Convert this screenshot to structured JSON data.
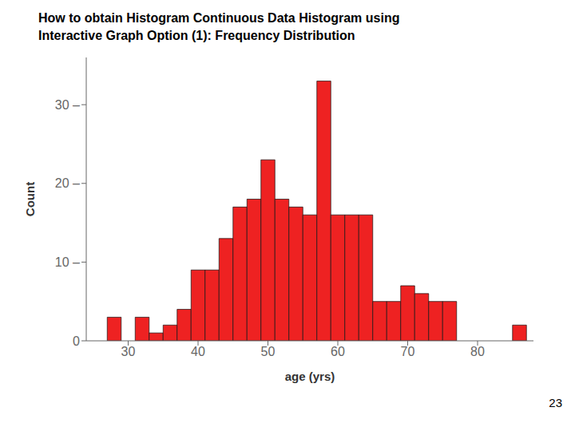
{
  "chart_data": {
    "type": "histogram",
    "title": "How to obtain Histogram Continuous Data Histogram using\nInteractive Graph Option (1): Frequency Distribution",
    "x_label": "age (yrs)",
    "y_label": "Count",
    "bins": [
      25,
      27,
      29,
      31,
      33,
      35,
      37,
      39,
      41,
      43,
      45,
      47,
      49,
      51,
      53,
      55,
      57,
      59,
      61,
      63,
      65,
      67,
      69,
      71,
      73,
      75,
      77,
      79,
      81,
      83,
      85,
      87
    ],
    "counts": [
      0,
      3,
      0,
      3,
      1,
      2,
      4,
      9,
      9,
      13,
      17,
      18,
      23,
      18,
      17,
      16,
      33,
      16,
      16,
      16,
      5,
      5,
      7,
      6,
      5,
      5,
      0,
      0,
      0,
      0,
      2
    ],
    "color": "#EE2222",
    "xlim": [
      24,
      88
    ],
    "xticks": [
      30,
      40,
      50,
      60,
      70,
      80
    ],
    "ylim": [
      0,
      36
    ],
    "yticks": [
      0,
      {
        "value": 10,
        "label": "10 –"
      },
      {
        "value": 20,
        "label": "20 –"
      },
      {
        "value": 30,
        "label": "30 –"
      }
    ],
    "grid": false,
    "annotations": [
      "23"
    ]
  }
}
